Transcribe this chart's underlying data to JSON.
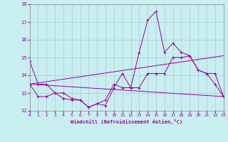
{
  "xlabel": "Windchill (Refroidissement éolien,°C)",
  "background_color": "#c8eef0",
  "grid_color": "#b0d0d8",
  "line_color": "#990099",
  "xlim": [
    0,
    23
  ],
  "ylim": [
    12,
    18
  ],
  "yticks": [
    12,
    13,
    14,
    15,
    16,
    17,
    18
  ],
  "xticks": [
    0,
    1,
    2,
    3,
    4,
    5,
    6,
    7,
    8,
    9,
    10,
    11,
    12,
    13,
    14,
    15,
    16,
    17,
    18,
    19,
    20,
    21,
    22,
    23
  ],
  "series1_x": [
    0,
    1,
    2,
    3,
    4,
    5,
    6,
    7,
    8,
    9,
    10,
    11,
    12,
    13,
    14,
    15,
    16,
    17,
    18,
    19,
    20,
    21,
    22,
    23
  ],
  "series1_y": [
    14.8,
    13.5,
    13.5,
    13.0,
    12.7,
    12.6,
    12.6,
    12.2,
    12.4,
    12.3,
    13.3,
    14.1,
    13.3,
    15.3,
    17.1,
    17.6,
    15.3,
    15.8,
    15.3,
    15.1,
    14.3,
    14.1,
    13.5,
    12.8
  ],
  "series2_x": [
    0,
    1,
    2,
    3,
    4,
    5,
    6,
    7,
    8,
    9,
    10,
    11,
    12,
    13,
    14,
    15,
    16,
    17,
    18,
    19,
    20,
    21,
    22,
    23
  ],
  "series2_y": [
    13.5,
    12.8,
    12.8,
    13.0,
    13.0,
    12.7,
    12.6,
    12.2,
    12.4,
    12.6,
    13.5,
    13.3,
    13.3,
    13.3,
    14.1,
    14.1,
    14.1,
    15.0,
    15.0,
    15.1,
    14.3,
    14.1,
    14.1,
    12.8
  ],
  "series3_x": [
    0,
    23
  ],
  "series3_y": [
    13.5,
    12.8
  ],
  "series4_x": [
    0,
    23
  ],
  "series4_y": [
    13.5,
    15.1
  ],
  "marker": "+"
}
